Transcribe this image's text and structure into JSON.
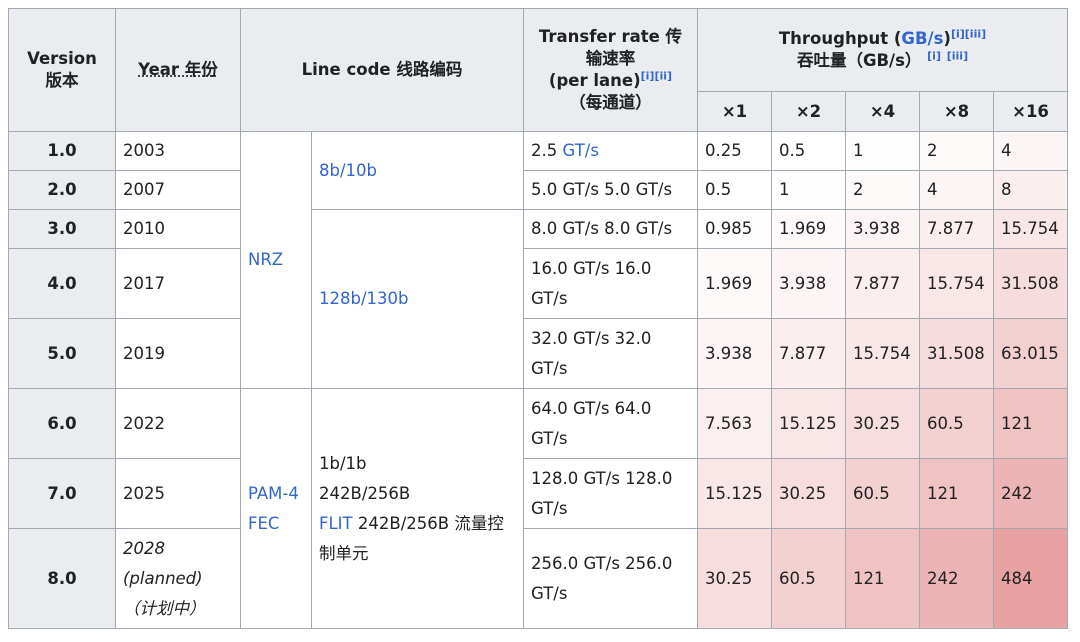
{
  "header": {
    "version": "Version",
    "version_zh": "版本",
    "year": "Year 年份",
    "line_code": "Line code 线路编码",
    "transfer_rate_1": "Transfer rate 传输速率",
    "transfer_rate_2": "(per lane)",
    "transfer_rate_3": "（每通道）",
    "throughput": "Throughput (",
    "throughput_unit": "GB/s",
    "throughput_close": ")",
    "throughput_zh": "吞吐量（GB/s）",
    "ref_i": "[i]",
    "ref_ii": "[ii]",
    "ref_iii": "[iii]",
    "lanes": [
      "×1",
      "×2",
      "×4",
      "×8",
      "×16"
    ]
  },
  "line_codes": {
    "nrz": "NRZ",
    "pam4_1": "PAM-4",
    "pam4_2": "FEC",
    "enc_8b10b": "8b/10b",
    "enc_128b130b": "128b/130b",
    "enc_flit_1": "1b/1b",
    "enc_flit_2": "242B/256B",
    "enc_flit_3a": "FLIT",
    "enc_flit_3b": " 242B/256B 流量控制单元"
  },
  "rows": [
    {
      "version": "1.0",
      "year": "2003",
      "rate": "2.5 ",
      "rate_unit": "GT/s",
      "t": [
        "0.25",
        "0.5",
        "1",
        "2",
        "4"
      ]
    },
    {
      "version": "2.0",
      "year": "2007",
      "rate": "5.0 GT/s  5.0 GT/s",
      "t": [
        "0.5",
        "1",
        "2",
        "4",
        "8"
      ]
    },
    {
      "version": "3.0",
      "year": "2010",
      "rate": "8.0 GT/s  8.0 GT/s",
      "t": [
        "0.985",
        "1.969",
        "3.938",
        "7.877",
        "15.754"
      ]
    },
    {
      "version": "4.0",
      "year": "2017",
      "rate": "16.0 GT/s  16.0 GT/s",
      "t": [
        "1.969",
        "3.938",
        "7.877",
        "15.754",
        "31.508"
      ]
    },
    {
      "version": "5.0",
      "year": "2019",
      "rate": "32.0 GT/s  32.0 GT/s",
      "t": [
        "3.938",
        "7.877",
        "15.754",
        "31.508",
        "63.015"
      ]
    },
    {
      "version": "6.0",
      "year": "2022",
      "rate": "64.0 GT/s  64.0 GT/s",
      "t": [
        "7.563",
        "15.125",
        "30.25",
        "60.5",
        "121"
      ]
    },
    {
      "version": "7.0",
      "year": "2025",
      "rate": "128.0 GT/s  128.0 GT/s",
      "t": [
        "15.125",
        "30.25",
        "60.5",
        "121",
        "242"
      ]
    },
    {
      "version": "8.0",
      "year_1": "2028",
      "year_2": "(planned) （计划中）",
      "rate": "256.0 GT/s  256.0 GT/s",
      "t": [
        "30.25",
        "60.5",
        "121",
        "242",
        "484"
      ]
    }
  ],
  "heat": {
    "max_gbps": 484,
    "low_color": "#ffffff",
    "high_color": "#e8a2a2"
  }
}
